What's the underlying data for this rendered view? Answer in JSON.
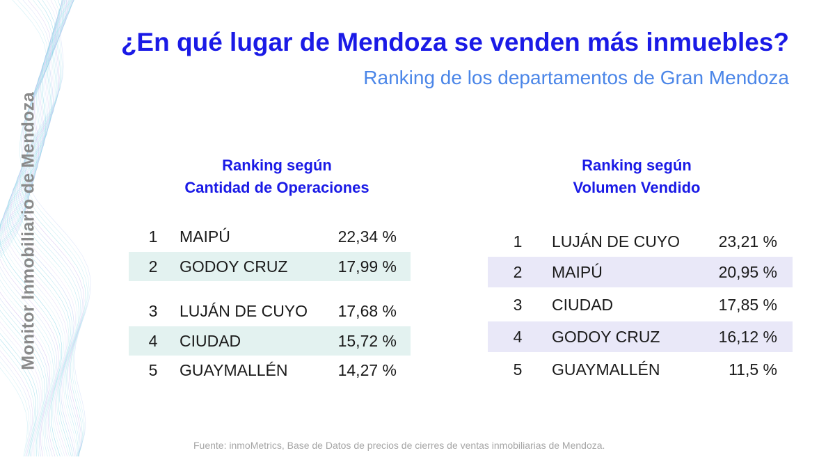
{
  "side_label": "Monitor Inmobiliario de Mendoza",
  "title": "¿En qué lugar de Mendoza se venden más inmuebles?",
  "subtitle": "Ranking de los departamentos de Gran Mendoza",
  "left_table": {
    "heading_line1": "Ranking según",
    "heading_line2": "Cantidad de Operaciones",
    "rows": [
      {
        "rank": "1",
        "name": "MAIPÚ",
        "pct": "22,34 %"
      },
      {
        "rank": "2",
        "name": "GODOY CRUZ",
        "pct": "17,99 %"
      },
      {
        "rank": "3",
        "name": "LUJÁN DE CUYO",
        "pct": "17,68 %"
      },
      {
        "rank": "4",
        "name": "CIUDAD",
        "pct": "15,72 %"
      },
      {
        "rank": "5",
        "name": "GUAYMALLÉN",
        "pct": "14,27 %"
      }
    ]
  },
  "right_table": {
    "heading_line1": "Ranking según",
    "heading_line2": "Volumen Vendido",
    "rows": [
      {
        "rank": "1",
        "name": "LUJÁN DE CUYO",
        "pct": "23,21 %"
      },
      {
        "rank": "2",
        "name": "MAIPÚ",
        "pct": "20,95 %"
      },
      {
        "rank": "3",
        "name": "CIUDAD",
        "pct": "17,85 %"
      },
      {
        "rank": "4",
        "name": "GODOY CRUZ",
        "pct": "16,12 %"
      },
      {
        "rank": "5",
        "name": "GUAYMALLÉN",
        "pct": "11,5 %"
      }
    ]
  },
  "footer": "Fuente: inmoMetrics, Base de Datos de precios de cierres de ventas inmobiliarias de Mendoza.",
  "colors": {
    "title": "#1a1ae6",
    "subtitle": "#4b86e8",
    "left_highlight": "#e3f2f0",
    "right_highlight": "#e9e8f8",
    "side_label": "#8a8a8a"
  }
}
